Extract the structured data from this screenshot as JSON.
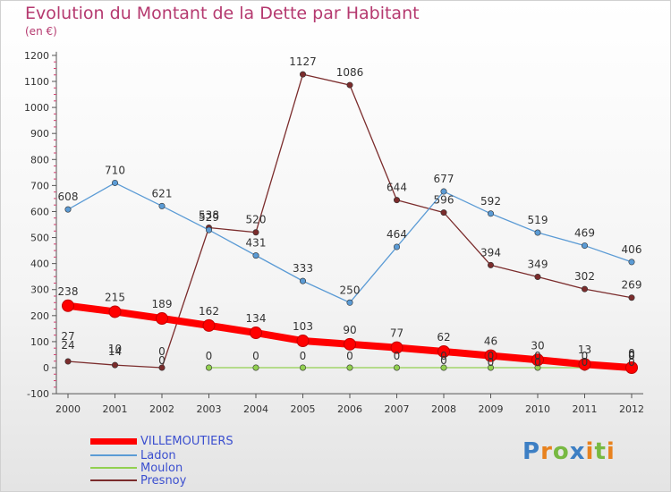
{
  "title": "Evolution du Montant de la Dette par Habitant",
  "subtitle": "(en €)",
  "logo_text": "Proxiti",
  "chart_data": {
    "type": "line",
    "categories": [
      "2000",
      "2001",
      "2002",
      "2003",
      "2004",
      "2005",
      "2006",
      "2007",
      "2008",
      "2009",
      "2010",
      "2011",
      "2012"
    ],
    "ylim": [
      -100,
      1200
    ],
    "yticks": [
      -100,
      0,
      100,
      200,
      300,
      400,
      500,
      600,
      700,
      800,
      900,
      1000,
      1100,
      1200
    ],
    "grid": false,
    "legend_position": "bottom-left",
    "series": [
      {
        "name": "VILLEMOUTIERS",
        "color": "#ff0000",
        "values": [
          238,
          215,
          189,
          162,
          134,
          103,
          90,
          77,
          62,
          46,
          30,
          13,
          0
        ],
        "labels": [
          "238",
          "215",
          "189",
          "162",
          "134",
          "103",
          "90",
          "77",
          "62",
          "46",
          "30",
          "13",
          "0"
        ]
      },
      {
        "name": "Ladon",
        "color": "#5b9bd5",
        "values": [
          608,
          710,
          621,
          529,
          431,
          333,
          250,
          464,
          677,
          592,
          519,
          469,
          406
        ],
        "labels": [
          "608",
          "710",
          "621",
          "529",
          "431",
          "333",
          "250",
          "464",
          "677",
          "592",
          "519",
          "469",
          "406"
        ]
      },
      {
        "name": "Moulon",
        "color": "#92d050",
        "values": [
          null,
          null,
          null,
          0,
          0,
          0,
          0,
          0,
          0,
          0,
          0,
          0,
          0
        ],
        "labels": [
          "",
          "",
          "",
          "0",
          "0",
          "0",
          "0",
          "0",
          "0",
          "0",
          "0",
          "0",
          "0"
        ]
      },
      {
        "name": "Presnoy",
        "color": "#7b2c2c",
        "values": [
          24,
          10,
          0,
          538,
          520,
          1127,
          1086,
          644,
          596,
          394,
          349,
          302,
          269
        ],
        "labels": [
          "24",
          "10",
          "0",
          "538",
          "520",
          "1127",
          "1086",
          "644",
          "596",
          "394",
          "349",
          "302",
          "269"
        ]
      }
    ],
    "extra_labels": [
      "27",
      "14",
      "0",
      "0",
      "0",
      "0",
      "0",
      "0",
      "0"
    ]
  }
}
